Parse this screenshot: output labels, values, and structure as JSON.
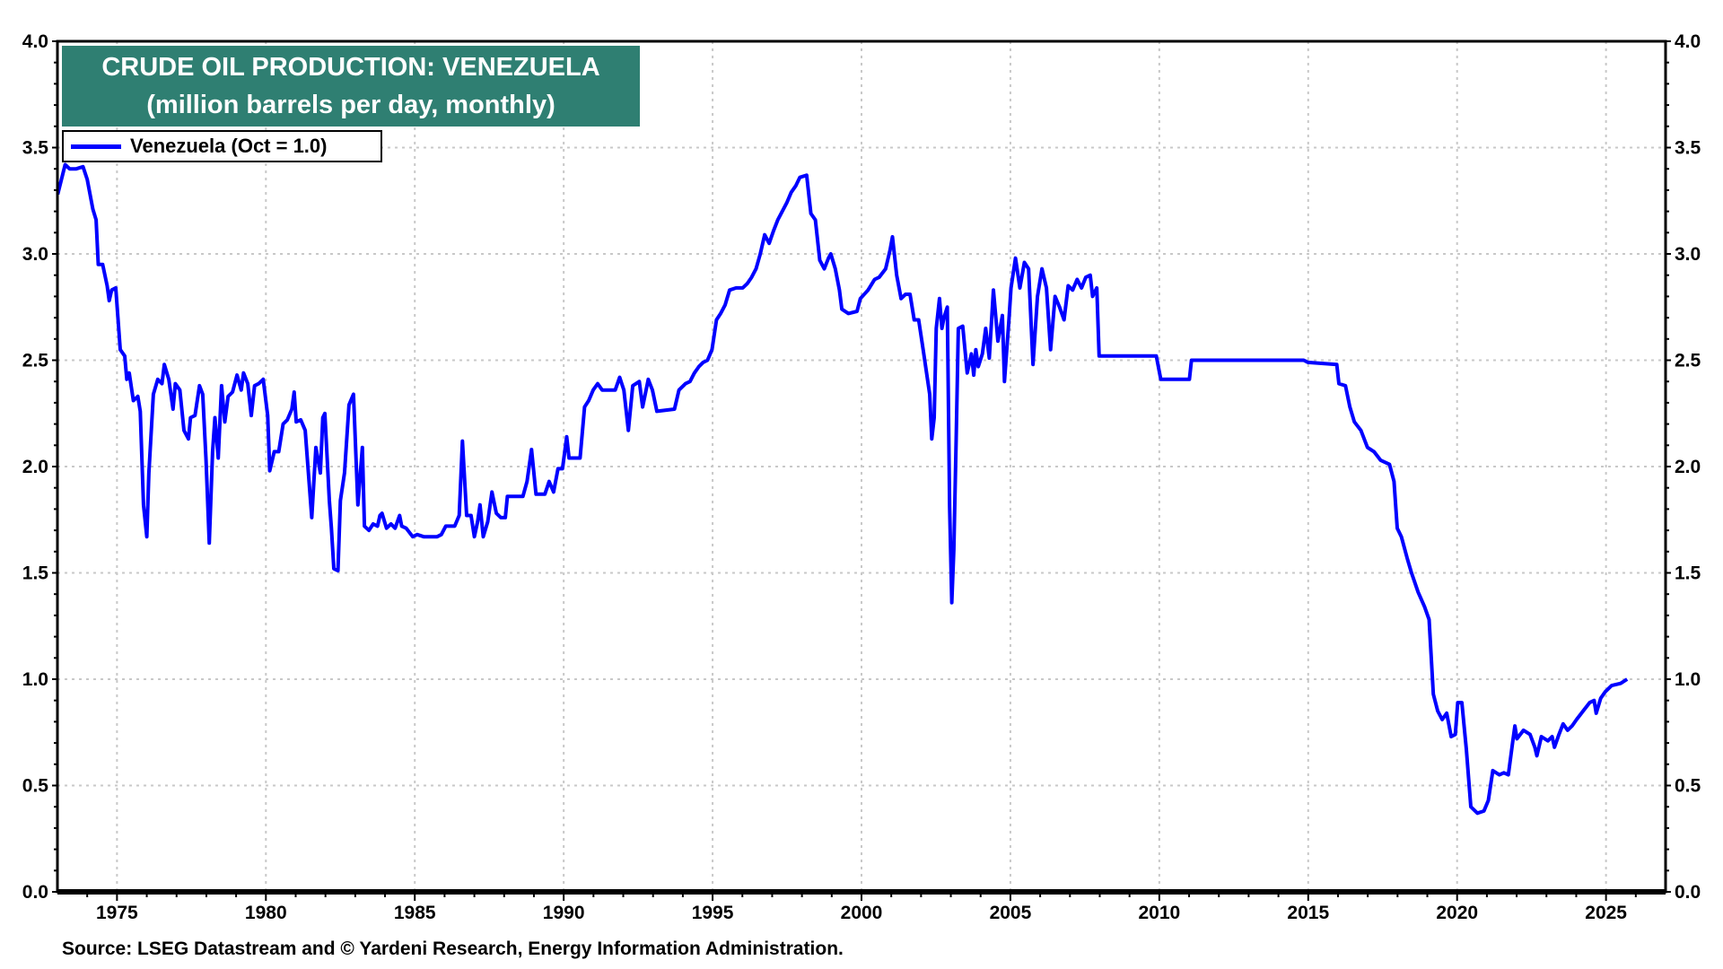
{
  "chart_data": {
    "type": "line",
    "title": "CRUDE OIL PRODUCTION: VENEZUELA",
    "subtitle": "(million barrels per day, monthly)",
    "xlabel": "",
    "ylabel": "",
    "xlim": [
      1973.0,
      2027.0
    ],
    "ylim": [
      0.0,
      4.0
    ],
    "x_ticks": [
      "1975",
      "1980",
      "1985",
      "1990",
      "1995",
      "2000",
      "2005",
      "2010",
      "2015",
      "2020",
      "2025"
    ],
    "y_ticks": [
      "0.0",
      "0.5",
      "1.0",
      "1.5",
      "2.0",
      "2.5",
      "3.0",
      "3.5",
      "4.0"
    ],
    "y_axis_both_sides": true,
    "grid": true,
    "legend_placement": "top-left",
    "colors": {
      "series": "#0000ff",
      "title_box": "#2f7f72"
    },
    "series": [
      {
        "name": "Venezuela (Oct = 1.0)",
        "x": [
          1973.01,
          1973.26,
          1973.41,
          1973.63,
          1973.86,
          1974.0,
          1974.19,
          1974.3,
          1974.37,
          1974.52,
          1974.67,
          1974.74,
          1974.82,
          1974.96,
          1975.11,
          1975.26,
          1975.33,
          1975.41,
          1975.55,
          1975.7,
          1975.78,
          1975.89,
          1976.0,
          1976.07,
          1976.22,
          1976.37,
          1976.51,
          1976.59,
          1976.74,
          1976.88,
          1976.96,
          1977.11,
          1977.25,
          1977.4,
          1977.47,
          1977.62,
          1977.77,
          1977.88,
          1977.99,
          1978.1,
          1978.21,
          1978.29,
          1978.4,
          1978.51,
          1978.62,
          1978.73,
          1978.88,
          1979.03,
          1979.17,
          1979.25,
          1979.39,
          1979.51,
          1979.62,
          1979.76,
          1979.91,
          1980.06,
          1980.13,
          1980.28,
          1980.43,
          1980.58,
          1980.72,
          1980.87,
          1980.95,
          1981.02,
          1981.17,
          1981.32,
          1981.54,
          1981.68,
          1981.83,
          1981.91,
          1981.98,
          1982.13,
          1982.2,
          1982.28,
          1982.42,
          1982.5,
          1982.64,
          1982.79,
          1982.94,
          1983.09,
          1983.24,
          1983.31,
          1983.46,
          1983.6,
          1983.75,
          1983.83,
          1983.9,
          1984.05,
          1984.2,
          1984.34,
          1984.49,
          1984.56,
          1984.71,
          1984.93,
          1985.08,
          1985.3,
          1985.75,
          1985.89,
          1986.04,
          1986.34,
          1986.49,
          1986.6,
          1986.74,
          1986.89,
          1987.0,
          1987.11,
          1987.19,
          1987.3,
          1987.45,
          1987.59,
          1987.74,
          1987.89,
          1988.04,
          1988.11,
          1988.63,
          1988.77,
          1988.92,
          1989.07,
          1989.37,
          1989.51,
          1989.66,
          1989.81,
          1989.96,
          1990.1,
          1990.18,
          1990.55,
          1990.7,
          1990.84,
          1990.99,
          1991.14,
          1991.29,
          1991.73,
          1991.88,
          1992.02,
          1992.17,
          1992.32,
          1992.54,
          1992.65,
          1992.84,
          1992.98,
          1993.13,
          1993.72,
          1993.87,
          1994.09,
          1994.24,
          1994.39,
          1994.54,
          1994.68,
          1994.83,
          1994.98,
          1995.13,
          1995.27,
          1995.42,
          1995.57,
          1995.79,
          1996.01,
          1996.16,
          1996.31,
          1996.46,
          1996.6,
          1996.75,
          1996.9,
          1997.05,
          1997.19,
          1997.34,
          1997.49,
          1997.64,
          1997.79,
          1997.93,
          1998.16,
          1998.3,
          1998.45,
          1998.6,
          1998.75,
          1998.89,
          1998.97,
          1999.12,
          1999.26,
          1999.34,
          1999.56,
          1999.85,
          1999.96,
          2000.22,
          2000.44,
          2000.59,
          2000.81,
          2000.96,
          2001.04,
          2001.18,
          2001.33,
          2001.48,
          2001.63,
          2001.77,
          2001.92,
          2002.07,
          2002.29,
          2002.36,
          2002.44,
          2002.51,
          2002.62,
          2002.7,
          2002.77,
          2002.88,
          2002.96,
          2003.03,
          2003.1,
          2003.18,
          2003.25,
          2003.4,
          2003.55,
          2003.69,
          2003.77,
          2003.84,
          2003.92,
          2004.06,
          2004.17,
          2004.29,
          2004.43,
          2004.58,
          2004.73,
          2004.8,
          2004.95,
          2005.02,
          2005.17,
          2005.32,
          2005.47,
          2005.61,
          2005.76,
          2005.91,
          2006.06,
          2006.21,
          2006.35,
          2006.5,
          2006.65,
          2006.8,
          2006.94,
          2007.09,
          2007.24,
          2007.39,
          2007.53,
          2007.68,
          2007.76,
          2007.9,
          2007.98,
          2008.94,
          2009.09,
          2009.9,
          2010.05,
          2011.01,
          2011.08,
          2014.85,
          2014.99,
          2015.96,
          2016.03,
          2016.25,
          2016.4,
          2016.55,
          2016.77,
          2016.99,
          2017.21,
          2017.43,
          2017.73,
          2017.88,
          2017.99,
          2018.13,
          2018.32,
          2018.47,
          2018.69,
          2018.91,
          2019.06,
          2019.2,
          2019.35,
          2019.5,
          2019.65,
          2019.8,
          2019.94,
          2020.02,
          2020.16,
          2020.31,
          2020.46,
          2020.68,
          2020.9,
          2021.05,
          2021.2,
          2021.42,
          2021.57,
          2021.72,
          2021.87,
          2021.94,
          2022.01,
          2022.23,
          2022.45,
          2022.61,
          2022.68,
          2022.83,
          2023.05,
          2023.19,
          2023.27,
          2023.42,
          2023.56,
          2023.71,
          2023.86,
          2024.01,
          2024.23,
          2024.45,
          2024.6,
          2024.67,
          2024.82,
          2024.97,
          2025.19,
          2025.49,
          2025.71
        ],
        "y": [
          3.28,
          3.42,
          3.4,
          3.4,
          3.41,
          3.35,
          3.21,
          3.16,
          2.95,
          2.95,
          2.85,
          2.78,
          2.83,
          2.84,
          2.55,
          2.52,
          2.41,
          2.44,
          2.31,
          2.33,
          2.26,
          1.82,
          1.67,
          1.97,
          2.34,
          2.41,
          2.39,
          2.48,
          2.41,
          2.27,
          2.39,
          2.36,
          2.17,
          2.13,
          2.23,
          2.24,
          2.38,
          2.34,
          2.03,
          1.64,
          2.07,
          2.23,
          2.04,
          2.38,
          2.21,
          2.33,
          2.35,
          2.43,
          2.36,
          2.44,
          2.39,
          2.24,
          2.38,
          2.39,
          2.41,
          2.24,
          1.98,
          2.07,
          2.07,
          2.2,
          2.22,
          2.27,
          2.35,
          2.21,
          2.22,
          2.17,
          1.76,
          2.09,
          1.97,
          2.23,
          2.25,
          1.84,
          1.71,
          1.52,
          1.51,
          1.84,
          1.97,
          2.29,
          2.34,
          1.82,
          2.09,
          1.72,
          1.7,
          1.73,
          1.72,
          1.77,
          1.78,
          1.71,
          1.73,
          1.71,
          1.77,
          1.72,
          1.71,
          1.67,
          1.68,
          1.67,
          1.67,
          1.68,
          1.72,
          1.72,
          1.77,
          2.12,
          1.77,
          1.77,
          1.67,
          1.74,
          1.82,
          1.67,
          1.74,
          1.88,
          1.78,
          1.76,
          1.76,
          1.86,
          1.86,
          1.93,
          2.08,
          1.87,
          1.87,
          1.93,
          1.88,
          1.99,
          1.99,
          2.14,
          2.04,
          2.04,
          2.28,
          2.31,
          2.36,
          2.39,
          2.36,
          2.36,
          2.42,
          2.36,
          2.17,
          2.38,
          2.4,
          2.28,
          2.41,
          2.36,
          2.26,
          2.27,
          2.36,
          2.39,
          2.4,
          2.44,
          2.47,
          2.49,
          2.5,
          2.55,
          2.69,
          2.72,
          2.76,
          2.83,
          2.84,
          2.84,
          2.86,
          2.89,
          2.93,
          3.0,
          3.09,
          3.05,
          3.11,
          3.16,
          3.2,
          3.24,
          3.29,
          3.32,
          3.36,
          3.37,
          3.19,
          3.16,
          2.97,
          2.93,
          2.98,
          3.0,
          2.93,
          2.83,
          2.74,
          2.72,
          2.73,
          2.79,
          2.83,
          2.88,
          2.89,
          2.93,
          3.02,
          3.08,
          2.9,
          2.79,
          2.81,
          2.81,
          2.69,
          2.69,
          2.55,
          2.34,
          2.13,
          2.23,
          2.65,
          2.79,
          2.65,
          2.7,
          2.75,
          1.81,
          1.36,
          1.61,
          2.13,
          2.65,
          2.66,
          2.44,
          2.53,
          2.43,
          2.55,
          2.47,
          2.53,
          2.65,
          2.51,
          2.83,
          2.59,
          2.71,
          2.4,
          2.69,
          2.84,
          2.98,
          2.84,
          2.96,
          2.93,
          2.48,
          2.8,
          2.93,
          2.84,
          2.55,
          2.8,
          2.75,
          2.69,
          2.85,
          2.83,
          2.88,
          2.84,
          2.89,
          2.9,
          2.8,
          2.84,
          2.52,
          2.52,
          2.52,
          2.52,
          2.41,
          2.41,
          2.5,
          2.5,
          2.49,
          2.48,
          2.39,
          2.38,
          2.28,
          2.21,
          2.17,
          2.09,
          2.07,
          2.03,
          2.01,
          1.93,
          1.71,
          1.67,
          1.57,
          1.5,
          1.41,
          1.34,
          1.28,
          0.93,
          0.85,
          0.81,
          0.84,
          0.73,
          0.74,
          0.89,
          0.89,
          0.67,
          0.4,
          0.37,
          0.38,
          0.43,
          0.57,
          0.55,
          0.56,
          0.55,
          0.71,
          0.78,
          0.72,
          0.76,
          0.74,
          0.68,
          0.64,
          0.73,
          0.71,
          0.73,
          0.68,
          0.74,
          0.79,
          0.76,
          0.78,
          0.81,
          0.85,
          0.89,
          0.9,
          0.84,
          0.91,
          0.94,
          0.97,
          0.98,
          1.0
        ]
      }
    ],
    "source": "Source: LSEG Datastream and © Yardeni Research, Energy Information Administration."
  }
}
